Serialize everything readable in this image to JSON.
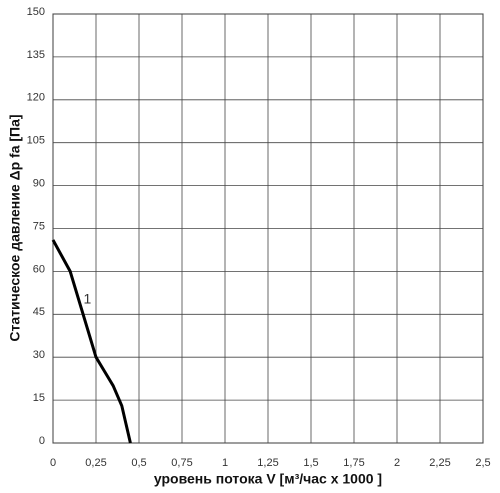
{
  "chart_data": {
    "type": "line",
    "x_label": "уровень потока  V [м³/час x 1000 ]",
    "y_label": "Статическое давление  Δp fa [Па]",
    "annotation": "1",
    "series": [
      {
        "name": "1",
        "color": "#000000",
        "x": [
          0,
          0.1,
          0.2,
          0.25,
          0.3,
          0.35,
          0.4,
          0.45
        ],
        "values": [
          71,
          60,
          40,
          30,
          25,
          20,
          13,
          0
        ]
      }
    ],
    "xlim": [
      0,
      2.5
    ],
    "xticks": [
      0,
      {
        "value": 0.25,
        "label": "0,25"
      },
      {
        "value": 0.5,
        "label": "0,5"
      },
      {
        "value": 0.75,
        "label": "0,75"
      },
      1,
      {
        "value": 1.25,
        "label": "1,25"
      },
      {
        "value": 1.5,
        "label": "1,5"
      },
      {
        "value": 1.75,
        "label": "1,75"
      },
      2,
      {
        "value": 2.25,
        "label": "2,25"
      },
      {
        "value": 2.5,
        "label": "2,5"
      }
    ],
    "ylim": [
      0,
      150
    ],
    "yticks": [
      0,
      15,
      30,
      45,
      60,
      75,
      90,
      105,
      120,
      135,
      150
    ],
    "grid": true
  }
}
